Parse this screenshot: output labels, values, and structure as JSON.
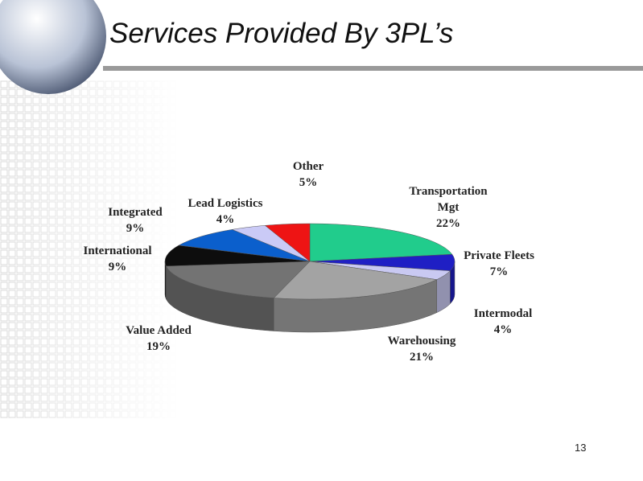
{
  "chart_data": {
    "type": "pie",
    "title": "Services Provided By 3PL’s",
    "categories": [
      "Transportation Mgt",
      "Private Fleets",
      "Intermodal",
      "Warehousing",
      "Value Added",
      "International",
      "Integrated",
      "Lead Logistics",
      "Other"
    ],
    "values": [
      22,
      7,
      4,
      21,
      19,
      9,
      9,
      4,
      5
    ],
    "value_labels": [
      "22%",
      "7%",
      "4%",
      "21%",
      "19%",
      "9%",
      "9%",
      "4%",
      "5%"
    ],
    "colors": [
      "#21cc8c",
      "#1f1fc4",
      "#c9c9f2",
      "#a3a3a3",
      "#737373",
      "#0d0d0d",
      "#0b5fcc",
      "#cacaf6",
      "#ee1414"
    ]
  },
  "slide_number": "13"
}
